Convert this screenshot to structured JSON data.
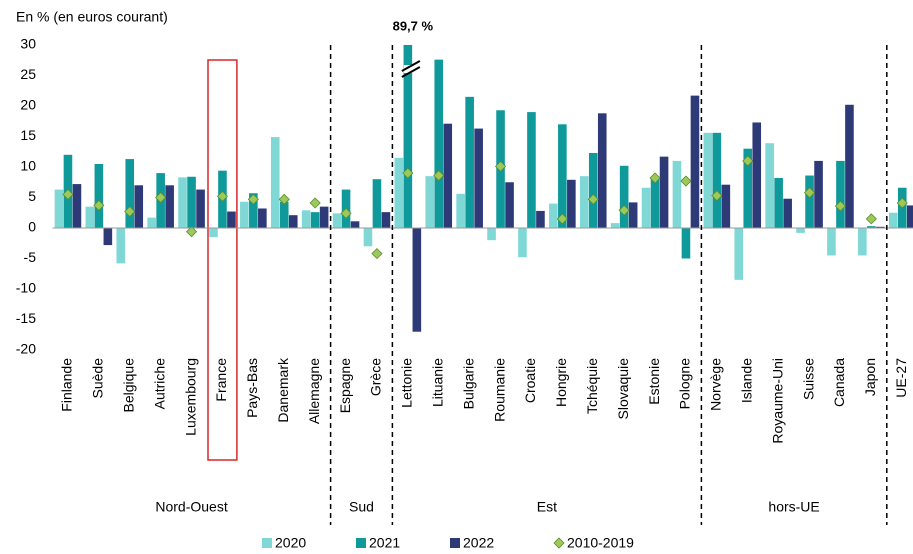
{
  "chart_data": {
    "type": "bar",
    "y_axis_title": "En % (en euros courant)",
    "categories": [
      "Finlande",
      "Suède",
      "Belgique",
      "Autriche",
      "Luxembourg",
      "France",
      "Pays-Bas",
      "Danemark",
      "Allemagne",
      "Espagne",
      "Grèce",
      "Lettonie",
      "Lituanie",
      "Bulgarie",
      "Roumanie",
      "Croatie",
      "Hongrie",
      "Tchéquie",
      "Slovaquie",
      "Estonie",
      "Pologne",
      "Norvège",
      "Islande",
      "Royaume-Uni",
      "Suisse",
      "Canada",
      "Japon",
      "UE-27"
    ],
    "groups": [
      {
        "name": "Nord-Ouest",
        "count": 9
      },
      {
        "name": "Sud",
        "count": 2
      },
      {
        "name": "Est",
        "count": 10
      },
      {
        "name": "hors-UE",
        "count": 6
      },
      {
        "name": null,
        "count": 1
      }
    ],
    "highlight_index": 5,
    "series": [
      {
        "name": "2020",
        "color": "#7fd8d6",
        "values": [
          6.3,
          3.5,
          -5.8,
          1.7,
          8.3,
          -1.5,
          4.3,
          14.9,
          2.9,
          2.4,
          -3,
          11.5,
          8.5,
          5.6,
          -2,
          -4.8,
          4,
          8.5,
          0.8,
          6.6,
          11,
          15.6,
          -8.5,
          13.9,
          -0.8,
          -4.5,
          -4.5,
          2.5
        ]
      },
      {
        "name": "2021",
        "color": "#10999a",
        "values": [
          12,
          10.5,
          11.3,
          9,
          8.4,
          9.4,
          5.7,
          4.3,
          2.6,
          6.3,
          8,
          89.7,
          27.6,
          21.5,
          19.3,
          19,
          17,
          12.3,
          10.2,
          8.3,
          -5,
          15.6,
          13,
          8.2,
          8.6,
          11,
          0.3,
          6.6
        ],
        "value_labels": [
          null,
          null,
          null,
          null,
          null,
          null,
          null,
          null,
          null,
          null,
          null,
          "89,7 %",
          null,
          null,
          null,
          null,
          null,
          null,
          null,
          null,
          null,
          null,
          null,
          null,
          null,
          null,
          null,
          null
        ]
      },
      {
        "name": "2022",
        "color": "#2e3a78",
        "values": [
          7.2,
          -2.8,
          7,
          7,
          6.3,
          2.7,
          3.2,
          2.1,
          3.5,
          1.1,
          2.6,
          -17,
          17.1,
          16.3,
          7.5,
          2.8,
          7.9,
          18.8,
          4.2,
          11.7,
          21.7,
          7.1,
          17.3,
          4.8,
          11,
          20.2,
          0.2,
          3.7
        ]
      },
      {
        "name": "2010-2019",
        "color": "#9bc95a",
        "marker": "diamond",
        "values": [
          5.5,
          3.7,
          2.7,
          5,
          -0.6,
          5.2,
          4.7,
          4.7,
          4.1,
          2.4,
          -4.2,
          9,
          8.6,
          null,
          10.1,
          null,
          1.5,
          4.7,
          2.9,
          8.2,
          7.7,
          5.3,
          11,
          null,
          5.8,
          3.6,
          1.5,
          4.1
        ]
      }
    ],
    "ylim": [
      -20,
      30
    ],
    "yticks": [
      -20,
      -15,
      -10,
      -5,
      0,
      5,
      10,
      15,
      20,
      25,
      30
    ]
  }
}
